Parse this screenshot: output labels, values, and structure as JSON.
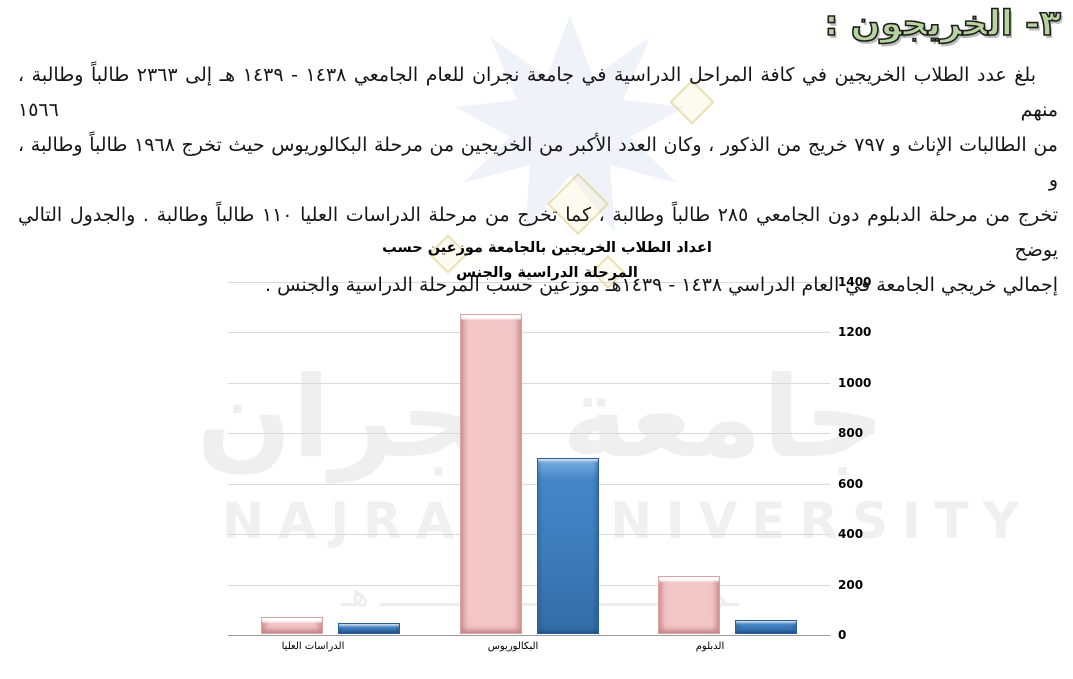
{
  "page": {
    "heading": "٣- الخريجون :",
    "paragraph_lines": [
      "بلغ عدد الطلاب الخريجين في كافة المراحل الدراسية في جامعة نجران للعام الجامعي ١٤٣٨ - ١٤٣٩ هـ إلى ٢٣٦٣ طالباً وطالبة ، منهم ١٥٦٦",
      "من الطالبات الإناث و ٧٩٧ خريج من الذكور ، وكان العدد الأكبر من الخريجين من مرحلة البكالوريوس حيث تخرج ١٩٦٨ طالباً وطالبة ، و",
      "تخرج من مرحلة الدبلوم دون الجامعي ٢٨٥ طالباً وطالبة ، كما تخرج من مرحلة الدراسات العليا ١١٠ طالباً وطالبة . والجدول التالي يوضح",
      "إجمالي خريجي الجامعة في العام الدراسي ١٤٣٨ - ١٤٣٩هـ موزعين حسب المرحلة الدراسية والجنس ."
    ]
  },
  "watermarks": {
    "arabic_name": "جامعة نجران",
    "latin_name": "NAJRAN UNIVERSITY",
    "script_line": "ـمـســـــــــــــــتـــــــــــــ هـ"
  },
  "chart_data": {
    "type": "bar",
    "title": "اعداد الطلاب الخريجين بالجامعة موزعين حسب المرحلة الدراسية والجنس",
    "title_lines": [
      "اعداد الطلاب الخريجين بالجامعة موزعين حسب",
      "المرحلة الدراسية والجنس"
    ],
    "categories": [
      "الدراسات العليا",
      "البكالوريوس",
      "الدبلوم"
    ],
    "series": [
      {
        "name": "pink",
        "color": "#f3c7c8",
        "values": [
          66,
          1270,
          230
        ]
      },
      {
        "name": "blue",
        "color": "#3d7bba",
        "values": [
          44,
          698,
          55
        ]
      }
    ],
    "ylim": [
      0,
      1400
    ],
    "yticks": [
      0,
      200,
      400,
      600,
      800,
      1000,
      1200,
      1400
    ],
    "grid": true,
    "legend": "none",
    "value_axis_side": "right",
    "xlabel": "",
    "ylabel": ""
  }
}
